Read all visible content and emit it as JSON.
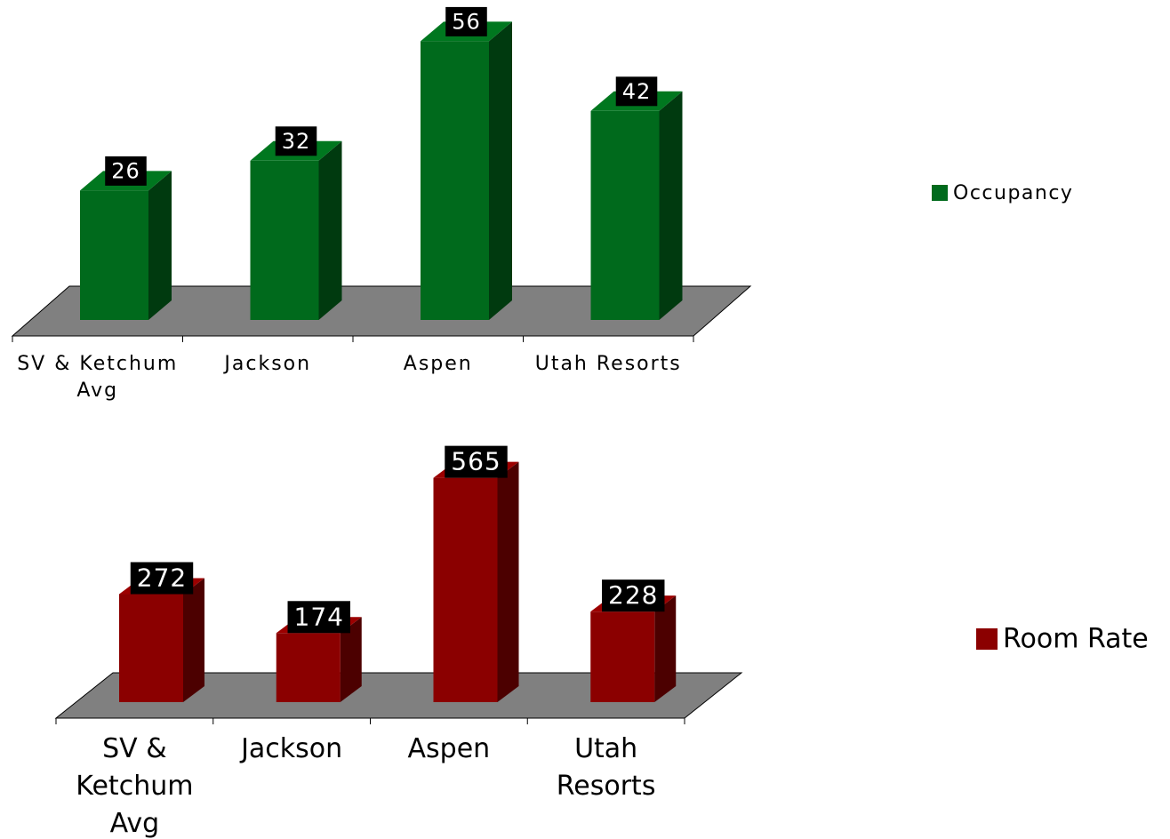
{
  "chart_data": [
    {
      "type": "bar3d",
      "categories": [
        "SV & Ketchum Avg",
        "Jackson",
        "Aspen",
        "Utah Resorts"
      ],
      "series": [
        {
          "name": "Occupancy",
          "color": "#006a1c",
          "values": [
            26,
            32,
            56,
            42
          ]
        }
      ],
      "ylim": [
        0,
        60
      ]
    },
    {
      "type": "bar3d",
      "categories": [
        "SV & Ketchum Avg",
        "Jackson",
        "Aspen",
        "Utah Resorts"
      ],
      "series": [
        {
          "name": "Room Rate",
          "color": "#8b0000",
          "values": [
            272,
            174,
            565,
            228
          ]
        }
      ],
      "ylim": [
        0,
        600
      ]
    }
  ]
}
